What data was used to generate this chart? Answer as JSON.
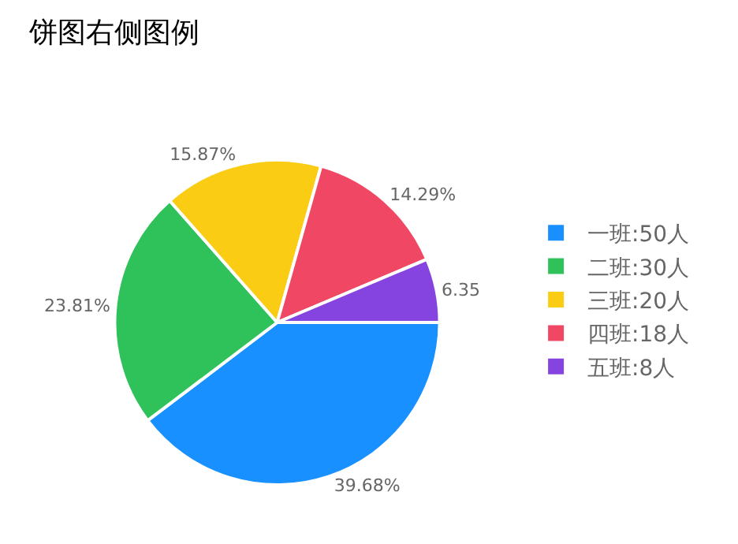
{
  "chart_data": {
    "type": "pie",
    "title": "饼图右侧图例",
    "categories": [
      "一班:50人",
      "二班:30人",
      "三班:20人",
      "四班:18人",
      "五班:8人"
    ],
    "values": [
      39.68,
      23.81,
      15.87,
      14.29,
      6.35
    ],
    "colors": [
      "#1890ff",
      "#2fc25b",
      "#facc14",
      "#f04864",
      "#8543e0"
    ],
    "value_labels": [
      "39.68%",
      "23.81%",
      "15.87%",
      "14.29%",
      "6.35"
    ],
    "legend": "right"
  }
}
